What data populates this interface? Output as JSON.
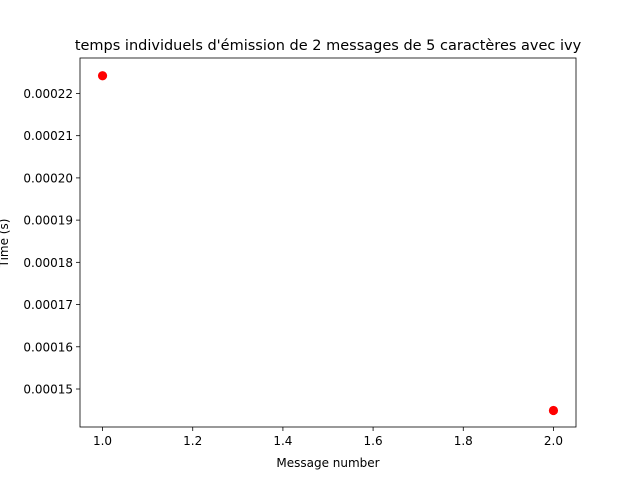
{
  "chart_data": {
    "type": "scatter",
    "title": "temps individuels d'émission de 2 messages de 5 caractères avec ivy",
    "xlabel": "Message number",
    "ylabel": "Time (s)",
    "xlim": [
      0.95,
      2.05
    ],
    "ylim": [
      0.000141,
      0.0002284
    ],
    "x_ticks": [
      "1.0",
      "1.2",
      "1.4",
      "1.6",
      "1.8",
      "2.0"
    ],
    "y_ticks": [
      "0.00015",
      "0.00016",
      "0.00017",
      "0.00018",
      "0.00019",
      "0.00020",
      "0.00021",
      "0.00022"
    ],
    "series": [
      {
        "color": "#ff0000",
        "marker": "circle",
        "points": [
          {
            "x": 1.0,
            "y": 0.0002242
          },
          {
            "x": 2.0,
            "y": 0.0001449
          }
        ]
      }
    ],
    "grid": false,
    "legend": false
  }
}
